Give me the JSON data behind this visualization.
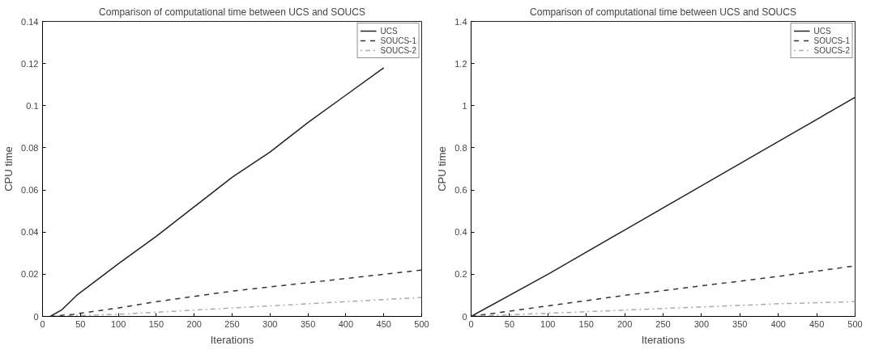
{
  "chart_data": [
    {
      "type": "line",
      "title": "Comparison of computational time between UCS and SOUCS",
      "xlabel": "Iterations",
      "ylabel": "CPU time",
      "xlim": [
        0,
        500
      ],
      "ylim": [
        0,
        0.14
      ],
      "xticks": [
        0,
        50,
        100,
        150,
        200,
        250,
        300,
        350,
        400,
        450,
        500
      ],
      "yticks": [
        0,
        0.02,
        0.04,
        0.06,
        0.08,
        0.1,
        0.12,
        0.14
      ],
      "grid": false,
      "legend": "top right",
      "series": [
        {
          "name": "UCS",
          "color": "#222222",
          "line_style": "solid",
          "x": [
            10,
            25,
            45,
            100,
            150,
            200,
            250,
            300,
            350,
            400,
            450
          ],
          "values": [
            0,
            0.003,
            0.01,
            0.025,
            0.038,
            0.052,
            0.066,
            0.078,
            0.092,
            0.105,
            0.118
          ]
        },
        {
          "name": "SOUCS-1",
          "color": "#333333",
          "line_style": "dashed",
          "x": [
            10,
            40,
            100,
            150,
            200,
            250,
            300,
            350,
            400,
            450,
            500
          ],
          "values": [
            0,
            0.001,
            0.004,
            0.007,
            0.0095,
            0.012,
            0.014,
            0.016,
            0.018,
            0.02,
            0.022
          ]
        },
        {
          "name": "SOUCS-2",
          "color": "#aaaaaa",
          "line_style": "dotted",
          "x": [
            10,
            100,
            150,
            200,
            250,
            300,
            350,
            400,
            450,
            500
          ],
          "values": [
            0,
            0.001,
            0.002,
            0.003,
            0.004,
            0.005,
            0.006,
            0.007,
            0.008,
            0.009
          ]
        }
      ]
    },
    {
      "type": "line",
      "title": "Comparison of computational time between UCS and SOUCS",
      "xlabel": "Iterations",
      "ylabel": "CPU time",
      "xlim": [
        0,
        500
      ],
      "ylim": [
        0,
        1.4
      ],
      "xticks": [
        0,
        50,
        100,
        150,
        200,
        250,
        300,
        350,
        400,
        450,
        500
      ],
      "yticks": [
        0,
        0.2,
        0.4,
        0.6,
        0.8,
        1,
        1.2,
        1.4
      ],
      "grid": false,
      "legend": "top right",
      "series": [
        {
          "name": "UCS",
          "color": "#222222",
          "line_style": "solid",
          "x": [
            0,
            100,
            200,
            300,
            400,
            500
          ],
          "values": [
            0,
            0.2,
            0.41,
            0.62,
            0.83,
            1.04
          ]
        },
        {
          "name": "SOUCS-1",
          "color": "#333333",
          "line_style": "dashed",
          "x": [
            0,
            100,
            200,
            300,
            400,
            500
          ],
          "values": [
            0,
            0.05,
            0.1,
            0.145,
            0.19,
            0.24
          ]
        },
        {
          "name": "SOUCS-2",
          "color": "#aaaaaa",
          "line_style": "dotted",
          "x": [
            0,
            100,
            200,
            300,
            400,
            500
          ],
          "values": [
            0,
            0.015,
            0.03,
            0.045,
            0.06,
            0.07
          ]
        }
      ]
    }
  ]
}
